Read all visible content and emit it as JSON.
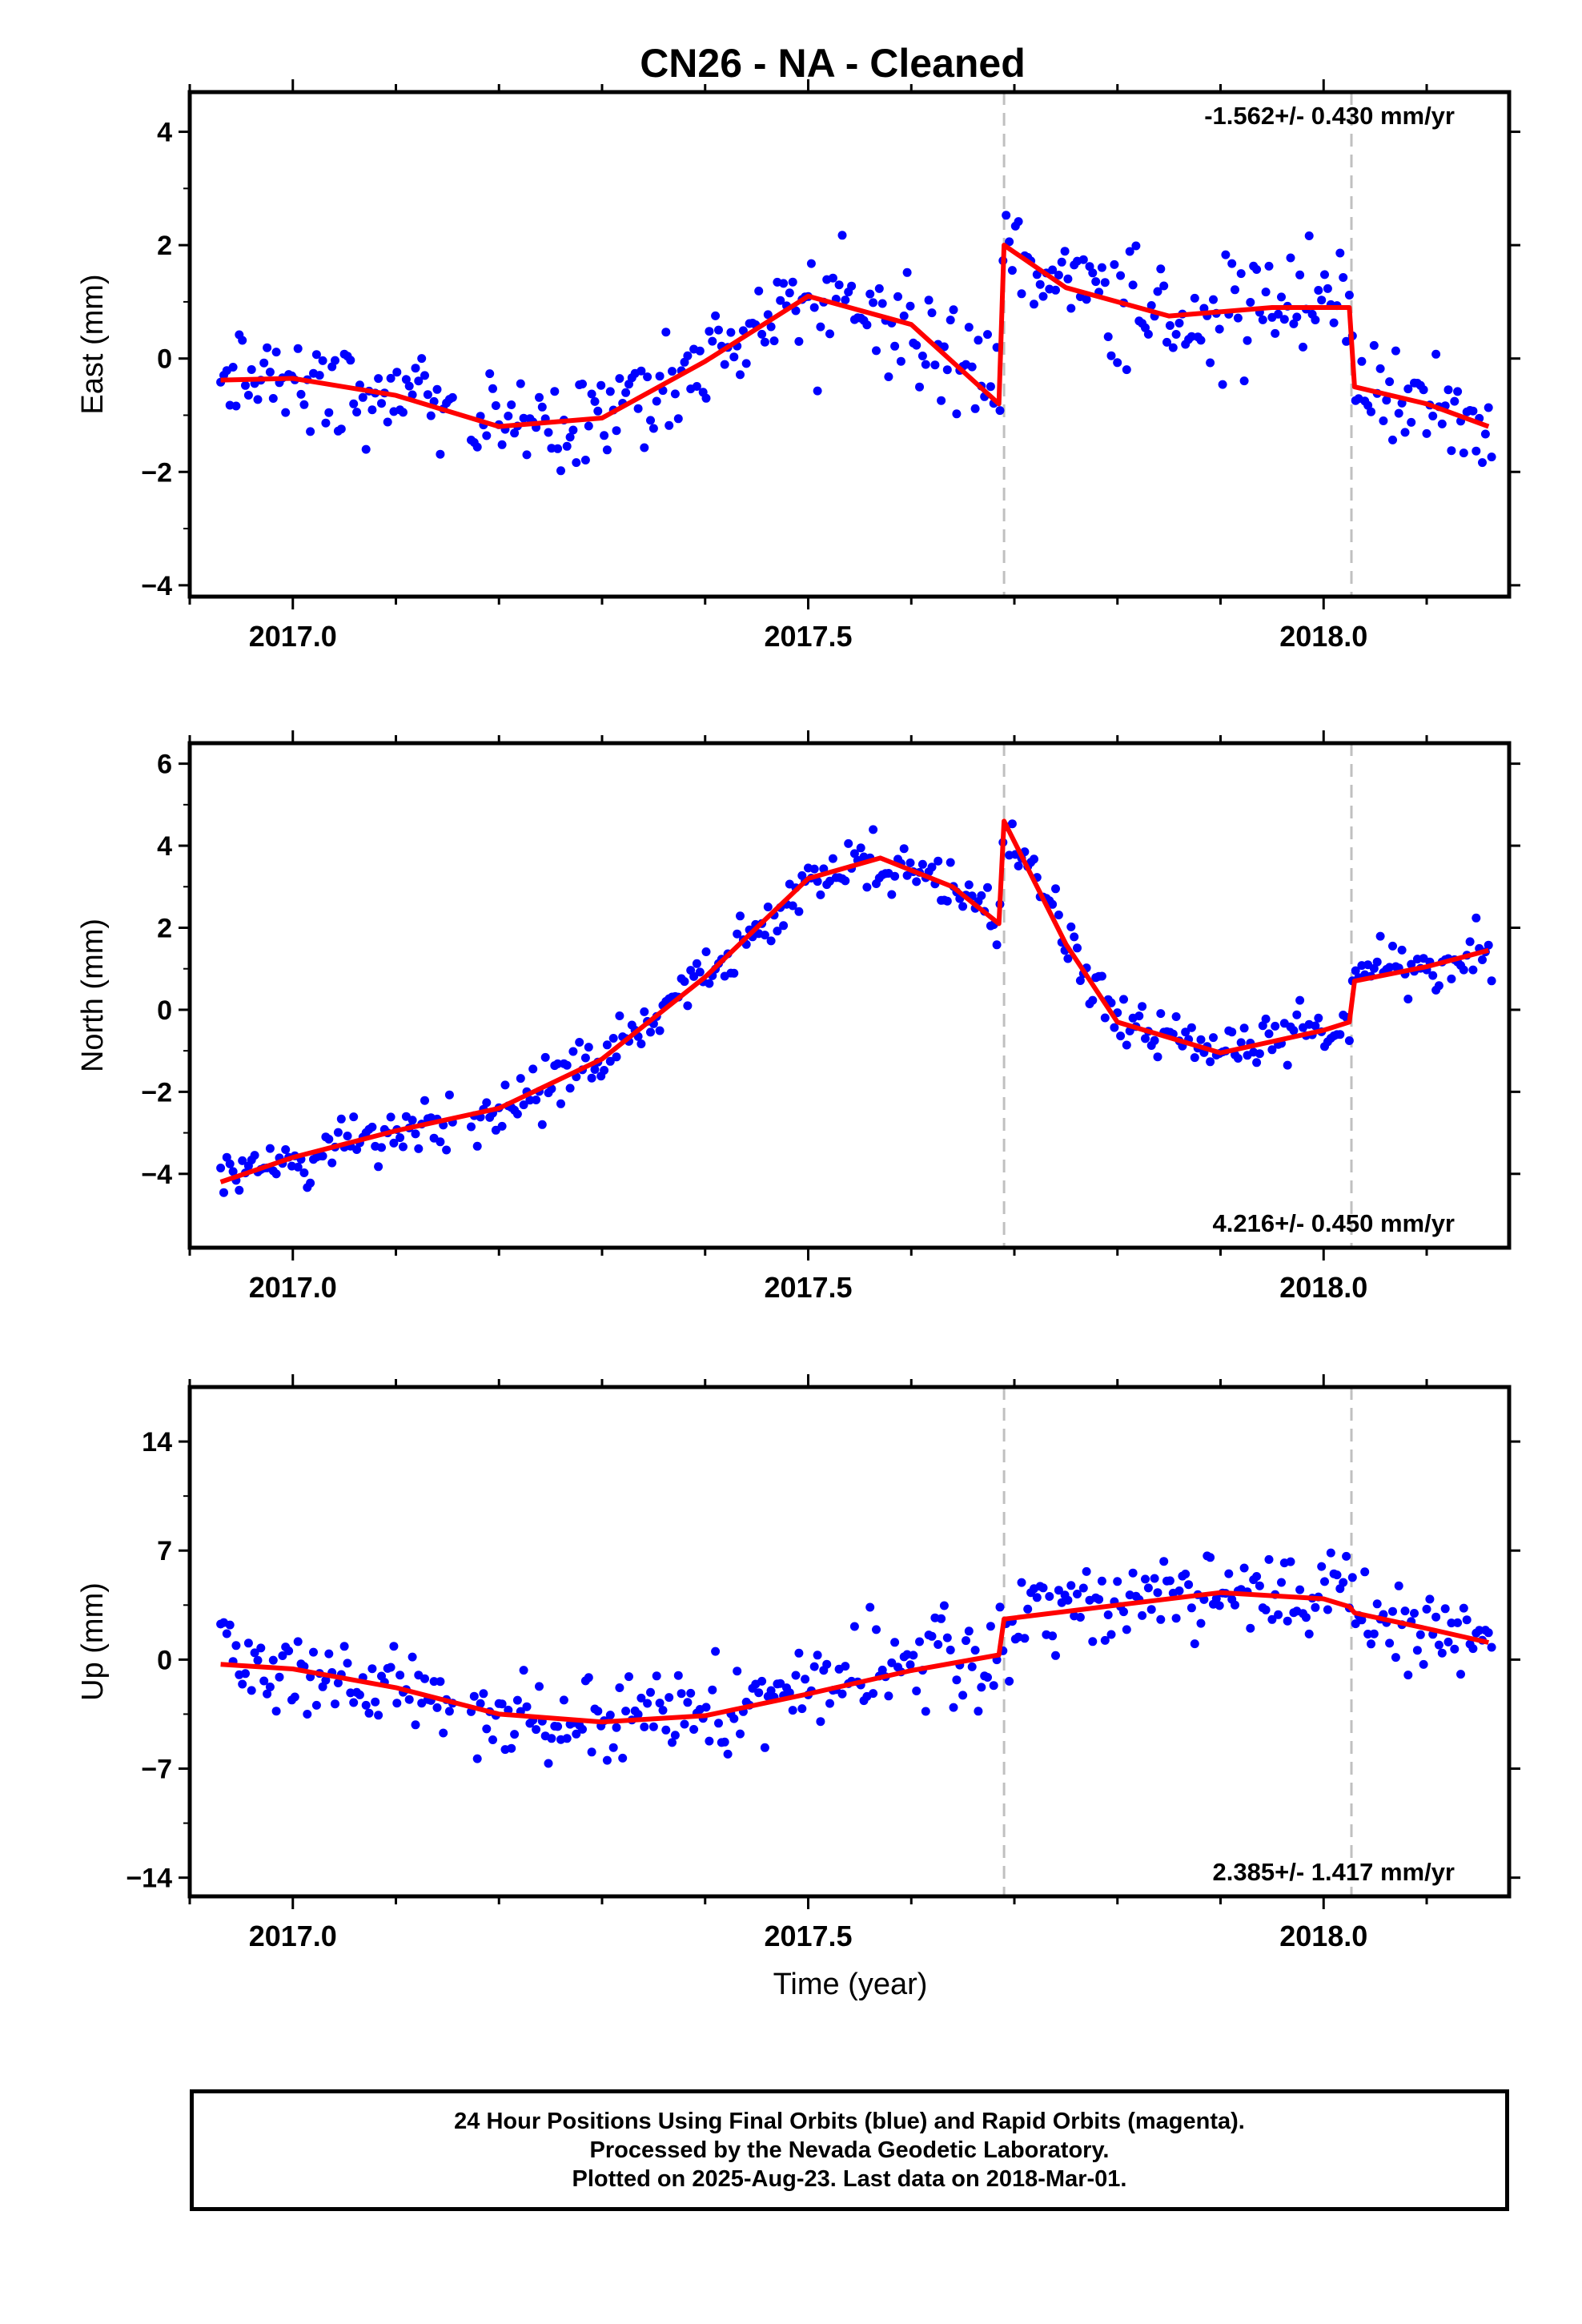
{
  "chart_data": {
    "type": "scatter",
    "title": "CN26  - NA - Cleaned",
    "xlabel": "Time (year)",
    "x_range": [
      2016.9,
      2018.18
    ],
    "x_ticks": [
      "2017.0",
      "2017.5",
      "2018.0"
    ],
    "x_tick_values": [
      2017.0,
      2017.5,
      2018.0
    ],
    "breaks": [
      2017.69,
      2018.027
    ],
    "series_colors": {
      "points": "#0000ff",
      "model": "#ff0000",
      "breaks": "#c0c0c0"
    },
    "panels": [
      {
        "id": "east",
        "ylabel": "East (mm)",
        "ylim": [
          -4.2,
          4.7
        ],
        "y_ticks": [
          "4",
          "2",
          "0",
          "−2",
          "−4"
        ],
        "y_tick_values": [
          4,
          2,
          0,
          -2,
          -4
        ],
        "rate_label": "-1.562+/- 0.430 mm/yr",
        "rate_position": "top-right",
        "model_curve": [
          [
            2016.93,
            -0.38
          ],
          [
            2017.0,
            -0.35
          ],
          [
            2017.1,
            -0.65
          ],
          [
            2017.2,
            -1.2
          ],
          [
            2017.3,
            -1.05
          ],
          [
            2017.4,
            -0.05
          ],
          [
            2017.5,
            1.1
          ],
          [
            2017.6,
            0.6
          ],
          [
            2017.685,
            -0.8
          ],
          [
            2017.69,
            2.0
          ],
          [
            2017.75,
            1.25
          ],
          [
            2017.85,
            0.75
          ],
          [
            2017.95,
            0.9
          ],
          [
            2018.025,
            0.9
          ],
          [
            2018.03,
            -0.5
          ],
          [
            2018.1,
            -0.8
          ],
          [
            2018.16,
            -1.2
          ]
        ],
        "amp": 1.2,
        "mean_offset": 0,
        "seed": 11
      },
      {
        "id": "north",
        "ylabel": "North (mm)",
        "ylim": [
          -5.8,
          6.5
        ],
        "y_ticks": [
          "6",
          "4",
          "2",
          "0",
          "−2",
          "−4"
        ],
        "y_tick_values": [
          6,
          4,
          2,
          0,
          -2,
          -4
        ],
        "rate_label": "4.216+/- 0.450 mm/yr",
        "rate_position": "bottom-right",
        "model_curve": [
          [
            2016.93,
            -4.2
          ],
          [
            2017.0,
            -3.6
          ],
          [
            2017.1,
            -2.95
          ],
          [
            2017.2,
            -2.4
          ],
          [
            2017.3,
            -1.2
          ],
          [
            2017.4,
            0.8
          ],
          [
            2017.5,
            3.2
          ],
          [
            2017.57,
            3.7
          ],
          [
            2017.64,
            3.0
          ],
          [
            2017.685,
            2.1
          ],
          [
            2017.69,
            4.6
          ],
          [
            2017.75,
            1.6
          ],
          [
            2017.8,
            -0.3
          ],
          [
            2017.9,
            -1.05
          ],
          [
            2018.0,
            -0.5
          ],
          [
            2018.025,
            -0.3
          ],
          [
            2018.03,
            0.7
          ],
          [
            2018.1,
            1.05
          ],
          [
            2018.16,
            1.45
          ]
        ],
        "amp": 0.9,
        "mean_offset": 0,
        "seed": 23
      },
      {
        "id": "up",
        "ylabel": "Up (mm)",
        "ylim": [
          -15.2,
          17.5
        ],
        "y_ticks": [
          "14",
          "7",
          "0",
          "−7",
          "−14"
        ],
        "y_tick_values": [
          14,
          7,
          0,
          -7,
          -14
        ],
        "rate_label": "2.385+/- 1.417 mm/yr",
        "rate_position": "bottom-right",
        "model_curve": [
          [
            2016.93,
            -0.3
          ],
          [
            2017.0,
            -0.6
          ],
          [
            2017.1,
            -1.8
          ],
          [
            2017.2,
            -3.5
          ],
          [
            2017.3,
            -4.0
          ],
          [
            2017.4,
            -3.6
          ],
          [
            2017.5,
            -2.2
          ],
          [
            2017.6,
            -0.7
          ],
          [
            2017.685,
            0.3
          ],
          [
            2017.69,
            2.6
          ],
          [
            2017.8,
            3.5
          ],
          [
            2017.9,
            4.3
          ],
          [
            2018.0,
            3.9
          ],
          [
            2018.025,
            3.4
          ],
          [
            2018.03,
            3.0
          ],
          [
            2018.1,
            2.0
          ],
          [
            2018.16,
            1.1
          ]
        ],
        "amp": 3.8,
        "mean_offset": 0,
        "seed": 37
      }
    ]
  },
  "footer": {
    "line1": "24 Hour Positions Using Final Orbits (blue) and Rapid Orbits (magenta).",
    "line2": "Processed by the Nevada Geodetic Laboratory.",
    "line3": "Plotted on 2025-Aug-23. Last data on 2018-Mar-01."
  }
}
